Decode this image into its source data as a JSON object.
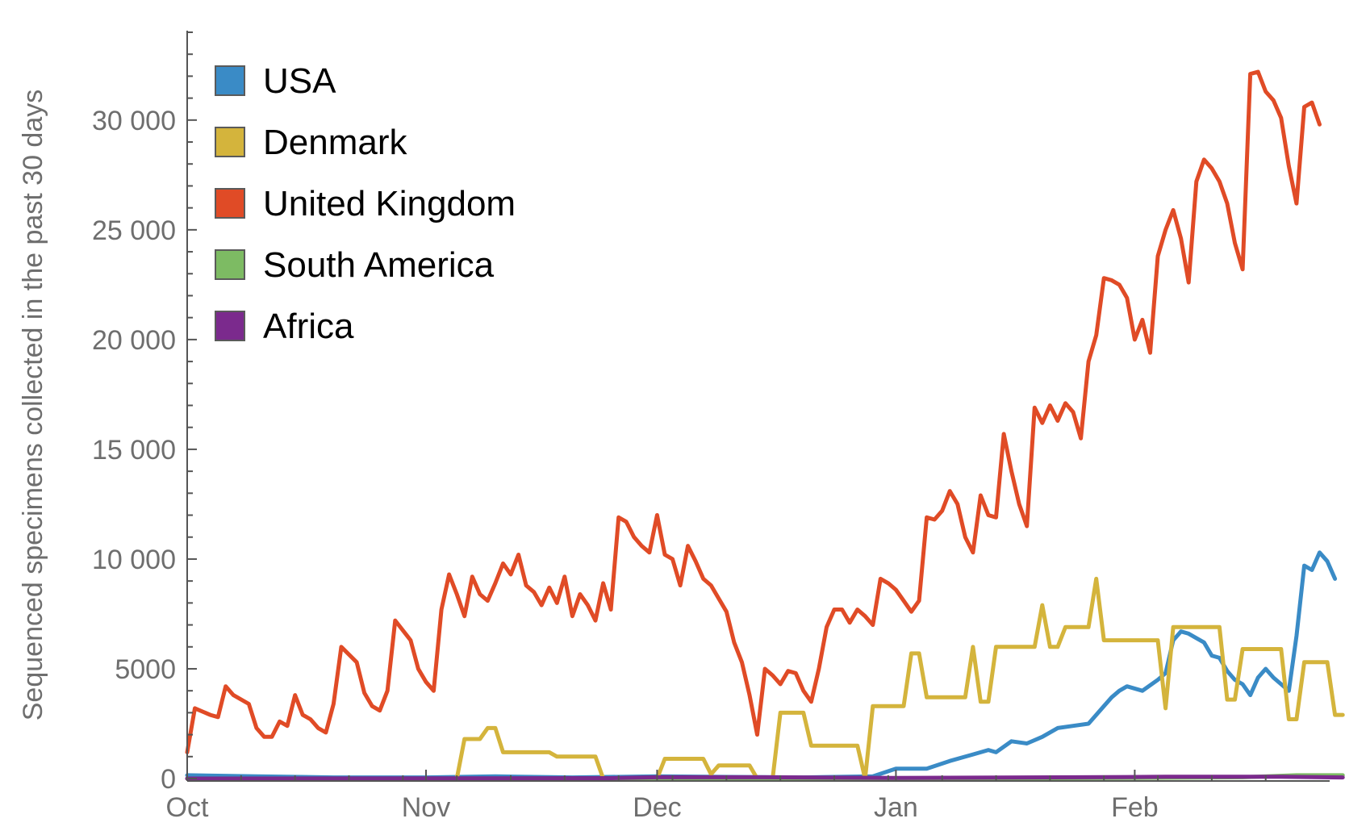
{
  "chart_data": {
    "type": "line",
    "title": "",
    "xlabel": "",
    "ylabel": "Sequenced specimens collected in the past 30 days",
    "x_start": "2020-10-01",
    "x_end": "2021-02-24",
    "x_ticks": [
      "Oct",
      "Nov",
      "Dec",
      "Jan",
      "Feb"
    ],
    "x_tick_dates": [
      "2020-10-01",
      "2020-11-01",
      "2020-12-01",
      "2021-01-01",
      "2021-02-01"
    ],
    "ylim": [
      0,
      34000
    ],
    "y_ticks": [
      0,
      5000,
      10000,
      15000,
      20000,
      25000,
      30000
    ],
    "y_tick_labels": [
      "0",
      "5000",
      "10 000",
      "15 000",
      "20 000",
      "25 000",
      "30 000"
    ],
    "legend_position": "top-left",
    "grid": false,
    "series": [
      {
        "name": "USA",
        "color": "#3a8bc6",
        "points": [
          [
            "2020-10-01",
            150
          ],
          [
            "2020-10-10",
            100
          ],
          [
            "2020-10-20",
            50
          ],
          [
            "2020-11-01",
            50
          ],
          [
            "2020-11-10",
            100
          ],
          [
            "2020-11-20",
            50
          ],
          [
            "2020-12-01",
            100
          ],
          [
            "2020-12-20",
            50
          ],
          [
            "2020-12-29",
            100
          ],
          [
            "2021-01-01",
            450
          ],
          [
            "2021-01-05",
            450
          ],
          [
            "2021-01-08",
            800
          ],
          [
            "2021-01-11",
            1100
          ],
          [
            "2021-01-13",
            1300
          ],
          [
            "2021-01-14",
            1200
          ],
          [
            "2021-01-16",
            1700
          ],
          [
            "2021-01-18",
            1600
          ],
          [
            "2021-01-20",
            1900
          ],
          [
            "2021-01-22",
            2300
          ],
          [
            "2021-01-24",
            2400
          ],
          [
            "2021-01-26",
            2500
          ],
          [
            "2021-01-28",
            3300
          ],
          [
            "2021-01-29",
            3700
          ],
          [
            "2021-01-30",
            4000
          ],
          [
            "2021-01-31",
            4200
          ],
          [
            "2021-02-02",
            4000
          ],
          [
            "2021-02-04",
            4500
          ],
          [
            "2021-02-05",
            4800
          ],
          [
            "2021-02-06",
            6300
          ],
          [
            "2021-02-07",
            6700
          ],
          [
            "2021-02-08",
            6600
          ],
          [
            "2021-02-09",
            6400
          ],
          [
            "2021-02-10",
            6200
          ],
          [
            "2021-02-11",
            5600
          ],
          [
            "2021-02-12",
            5500
          ],
          [
            "2021-02-13",
            4900
          ],
          [
            "2021-02-14",
            4500
          ],
          [
            "2021-02-15",
            4300
          ],
          [
            "2021-02-16",
            3800
          ],
          [
            "2021-02-17",
            4600
          ],
          [
            "2021-02-18",
            5000
          ],
          [
            "2021-02-19",
            4600
          ],
          [
            "2021-02-20",
            4300
          ],
          [
            "2021-02-21",
            4000
          ],
          [
            "2021-02-22",
            6500
          ],
          [
            "2021-02-23",
            9700
          ],
          [
            "2021-02-24",
            9500
          ],
          [
            "2021-02-25",
            10300
          ],
          [
            "2021-02-26",
            9900
          ],
          [
            "2021-02-27",
            9100
          ]
        ]
      },
      {
        "name": "Denmark",
        "color": "#d4b43c",
        "points": [
          [
            "2020-10-01",
            0
          ],
          [
            "2020-11-05",
            0
          ],
          [
            "2020-11-06",
            1800
          ],
          [
            "2020-11-08",
            1800
          ],
          [
            "2020-11-09",
            2300
          ],
          [
            "2020-11-10",
            2300
          ],
          [
            "2020-11-11",
            1200
          ],
          [
            "2020-11-17",
            1200
          ],
          [
            "2020-11-18",
            1000
          ],
          [
            "2020-11-23",
            1000
          ],
          [
            "2020-11-24",
            0
          ],
          [
            "2020-12-01",
            0
          ],
          [
            "2020-12-02",
            900
          ],
          [
            "2020-12-07",
            900
          ],
          [
            "2020-12-08",
            200
          ],
          [
            "2020-12-09",
            600
          ],
          [
            "2020-12-13",
            600
          ],
          [
            "2020-12-14",
            0
          ],
          [
            "2020-12-16",
            0
          ],
          [
            "2020-12-17",
            3000
          ],
          [
            "2020-12-20",
            3000
          ],
          [
            "2020-12-21",
            1500
          ],
          [
            "2020-12-27",
            1500
          ],
          [
            "2020-12-28",
            0
          ],
          [
            "2020-12-29",
            3300
          ],
          [
            "2021-01-02",
            3300
          ],
          [
            "2021-01-03",
            5700
          ],
          [
            "2021-01-04",
            5700
          ],
          [
            "2021-01-05",
            3700
          ],
          [
            "2021-01-10",
            3700
          ],
          [
            "2021-01-11",
            6000
          ],
          [
            "2021-01-12",
            3500
          ],
          [
            "2021-01-13",
            3500
          ],
          [
            "2021-01-14",
            6000
          ],
          [
            "2021-01-19",
            6000
          ],
          [
            "2021-01-20",
            7900
          ],
          [
            "2021-01-21",
            6000
          ],
          [
            "2021-01-22",
            6000
          ],
          [
            "2021-01-23",
            6900
          ],
          [
            "2021-01-26",
            6900
          ],
          [
            "2021-01-27",
            9100
          ],
          [
            "2021-01-28",
            6300
          ],
          [
            "2021-02-04",
            6300
          ],
          [
            "2021-02-05",
            3200
          ],
          [
            "2021-02-06",
            6900
          ],
          [
            "2021-02-12",
            6900
          ],
          [
            "2021-02-13",
            3600
          ],
          [
            "2021-02-14",
            3600
          ],
          [
            "2021-02-15",
            5900
          ],
          [
            "2021-02-20",
            5900
          ],
          [
            "2021-02-21",
            2700
          ],
          [
            "2021-02-22",
            2700
          ],
          [
            "2021-02-23",
            5300
          ],
          [
            "2021-02-26",
            5300
          ],
          [
            "2021-02-27",
            2900
          ],
          [
            "2021-02-28",
            2900
          ]
        ]
      },
      {
        "name": "United Kingdom",
        "color": "#e04b26",
        "points": [
          [
            "2020-10-01",
            1200
          ],
          [
            "2020-10-02",
            3200
          ],
          [
            "2020-10-04",
            2900
          ],
          [
            "2020-10-05",
            2800
          ],
          [
            "2020-10-06",
            4200
          ],
          [
            "2020-10-07",
            3800
          ],
          [
            "2020-10-09",
            3400
          ],
          [
            "2020-10-10",
            2300
          ],
          [
            "2020-10-11",
            1900
          ],
          [
            "2020-10-12",
            1900
          ],
          [
            "2020-10-13",
            2600
          ],
          [
            "2020-10-14",
            2400
          ],
          [
            "2020-10-15",
            3800
          ],
          [
            "2020-10-16",
            2900
          ],
          [
            "2020-10-17",
            2700
          ],
          [
            "2020-10-18",
            2300
          ],
          [
            "2020-10-19",
            2100
          ],
          [
            "2020-10-20",
            3400
          ],
          [
            "2020-10-21",
            6000
          ],
          [
            "2020-10-23",
            5300
          ],
          [
            "2020-10-24",
            3900
          ],
          [
            "2020-10-25",
            3300
          ],
          [
            "2020-10-26",
            3100
          ],
          [
            "2020-10-27",
            4000
          ],
          [
            "2020-10-28",
            7200
          ],
          [
            "2020-10-30",
            6300
          ],
          [
            "2020-10-31",
            5000
          ],
          [
            "2020-11-01",
            4400
          ],
          [
            "2020-11-02",
            4000
          ],
          [
            "2020-11-03",
            7700
          ],
          [
            "2020-11-04",
            9300
          ],
          [
            "2020-11-05",
            8400
          ],
          [
            "2020-11-06",
            7400
          ],
          [
            "2020-11-07",
            9200
          ],
          [
            "2020-11-08",
            8400
          ],
          [
            "2020-11-09",
            8100
          ],
          [
            "2020-11-10",
            8900
          ],
          [
            "2020-11-11",
            9800
          ],
          [
            "2020-11-12",
            9300
          ],
          [
            "2020-11-13",
            10200
          ],
          [
            "2020-11-14",
            8800
          ],
          [
            "2020-11-15",
            8500
          ],
          [
            "2020-11-16",
            7900
          ],
          [
            "2020-11-17",
            8700
          ],
          [
            "2020-11-18",
            8000
          ],
          [
            "2020-11-19",
            9200
          ],
          [
            "2020-11-20",
            7400
          ],
          [
            "2020-11-21",
            8400
          ],
          [
            "2020-11-22",
            7900
          ],
          [
            "2020-11-23",
            7200
          ],
          [
            "2020-11-24",
            8900
          ],
          [
            "2020-11-25",
            7700
          ],
          [
            "2020-11-26",
            11900
          ],
          [
            "2020-11-27",
            11700
          ],
          [
            "2020-11-28",
            11000
          ],
          [
            "2020-11-29",
            10600
          ],
          [
            "2020-11-30",
            10300
          ],
          [
            "2020-12-01",
            12000
          ],
          [
            "2020-12-02",
            10200
          ],
          [
            "2020-12-03",
            10000
          ],
          [
            "2020-12-04",
            8800
          ],
          [
            "2020-12-05",
            10600
          ],
          [
            "2020-12-06",
            9900
          ],
          [
            "2020-12-07",
            9100
          ],
          [
            "2020-12-08",
            8800
          ],
          [
            "2020-12-09",
            8200
          ],
          [
            "2020-12-10",
            7600
          ],
          [
            "2020-12-11",
            6200
          ],
          [
            "2020-12-12",
            5300
          ],
          [
            "2020-12-13",
            3800
          ],
          [
            "2020-12-14",
            2000
          ],
          [
            "2020-12-15",
            5000
          ],
          [
            "2020-12-16",
            4700
          ],
          [
            "2020-12-17",
            4300
          ],
          [
            "2020-12-18",
            4900
          ],
          [
            "2020-12-19",
            4800
          ],
          [
            "2020-12-20",
            4000
          ],
          [
            "2020-12-21",
            3500
          ],
          [
            "2020-12-22",
            5000
          ],
          [
            "2020-12-23",
            6900
          ],
          [
            "2020-12-24",
            7700
          ],
          [
            "2020-12-25",
            7700
          ],
          [
            "2020-12-26",
            7100
          ],
          [
            "2020-12-27",
            7700
          ],
          [
            "2020-12-28",
            7400
          ],
          [
            "2020-12-29",
            7000
          ],
          [
            "2020-12-30",
            9100
          ],
          [
            "2020-12-31",
            8900
          ],
          [
            "2021-01-01",
            8600
          ],
          [
            "2021-01-02",
            8100
          ],
          [
            "2021-01-03",
            7600
          ],
          [
            "2021-01-04",
            8100
          ],
          [
            "2021-01-05",
            11900
          ],
          [
            "2021-01-06",
            11800
          ],
          [
            "2021-01-07",
            12200
          ],
          [
            "2021-01-08",
            13100
          ],
          [
            "2021-01-09",
            12500
          ],
          [
            "2021-01-10",
            11000
          ],
          [
            "2021-01-11",
            10300
          ],
          [
            "2021-01-12",
            12900
          ],
          [
            "2021-01-13",
            12000
          ],
          [
            "2021-01-14",
            11900
          ],
          [
            "2021-01-15",
            15700
          ],
          [
            "2021-01-16",
            14000
          ],
          [
            "2021-01-17",
            12500
          ],
          [
            "2021-01-18",
            11500
          ],
          [
            "2021-01-19",
            16900
          ],
          [
            "2021-01-20",
            16200
          ],
          [
            "2021-01-21",
            17000
          ],
          [
            "2021-01-22",
            16300
          ],
          [
            "2021-01-23",
            17100
          ],
          [
            "2021-01-24",
            16700
          ],
          [
            "2021-01-25",
            15500
          ],
          [
            "2021-01-26",
            19000
          ],
          [
            "2021-01-27",
            20200
          ],
          [
            "2021-01-28",
            22800
          ],
          [
            "2021-01-29",
            22700
          ],
          [
            "2021-01-30",
            22500
          ],
          [
            "2021-01-31",
            21900
          ],
          [
            "2021-02-01",
            20000
          ],
          [
            "2021-02-02",
            20900
          ],
          [
            "2021-02-03",
            19400
          ],
          [
            "2021-02-04",
            23800
          ],
          [
            "2021-02-05",
            25000
          ],
          [
            "2021-02-06",
            25900
          ],
          [
            "2021-02-07",
            24600
          ],
          [
            "2021-02-08",
            22600
          ],
          [
            "2021-02-09",
            27200
          ],
          [
            "2021-02-10",
            28200
          ],
          [
            "2021-02-11",
            27800
          ],
          [
            "2021-02-12",
            27200
          ],
          [
            "2021-02-13",
            26200
          ],
          [
            "2021-02-14",
            24400
          ],
          [
            "2021-02-15",
            23200
          ],
          [
            "2021-02-16",
            32100
          ],
          [
            "2021-02-17",
            32200
          ],
          [
            "2021-02-18",
            31300
          ],
          [
            "2021-02-19",
            30900
          ],
          [
            "2021-02-20",
            30100
          ],
          [
            "2021-02-21",
            27900
          ],
          [
            "2021-02-22",
            26200
          ],
          [
            "2021-02-23",
            30600
          ],
          [
            "2021-02-24",
            30800
          ],
          [
            "2021-02-25",
            29800
          ]
        ]
      },
      {
        "name": "South America",
        "color": "#7dbb63",
        "points": [
          [
            "2020-10-01",
            0
          ],
          [
            "2020-12-01",
            0
          ],
          [
            "2021-01-01",
            0
          ],
          [
            "2021-02-01",
            30
          ],
          [
            "2021-02-15",
            60
          ],
          [
            "2021-02-22",
            150
          ],
          [
            "2021-02-28",
            150
          ]
        ]
      },
      {
        "name": "Africa",
        "color": "#7b2a8d",
        "points": [
          [
            "2020-10-01",
            0
          ],
          [
            "2020-11-25",
            20
          ],
          [
            "2020-12-01",
            60
          ],
          [
            "2020-12-15",
            60
          ],
          [
            "2021-01-01",
            30
          ],
          [
            "2021-01-25",
            60
          ],
          [
            "2021-02-05",
            80
          ],
          [
            "2021-02-20",
            80
          ],
          [
            "2021-02-28",
            50
          ]
        ]
      }
    ]
  }
}
